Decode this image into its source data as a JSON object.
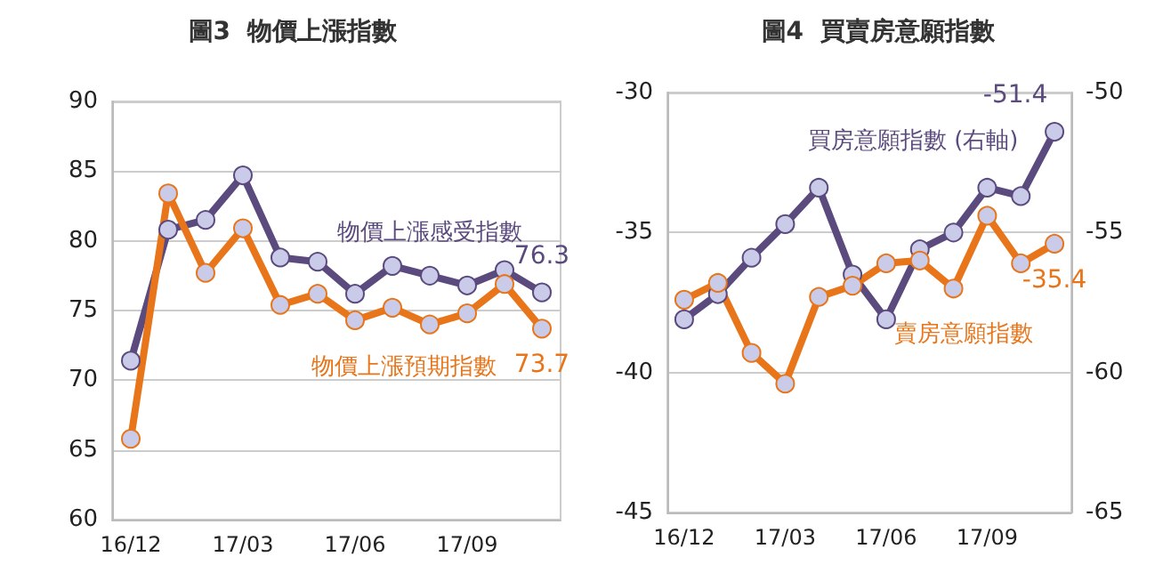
{
  "chart_data": [
    {
      "type": "line",
      "title": "圖3  物價上漲指數",
      "categories": [
        "16/12",
        null,
        null,
        "17/03",
        null,
        null,
        "17/06",
        null,
        null,
        "17/09",
        null,
        null
      ],
      "ylim": [
        60,
        90
      ],
      "yticks": [
        60,
        65,
        70,
        75,
        80,
        85,
        90
      ],
      "grid": "y",
      "marker": "circle",
      "legend": false,
      "series": [
        {
          "name": "物價上漲感受指數",
          "color": "#5b4a7e",
          "values": [
            71.4,
            80.8,
            81.5,
            84.7,
            78.8,
            78.5,
            76.2,
            78.2,
            77.5,
            76.8,
            77.9,
            76.3
          ],
          "value_labels": [
            null,
            null,
            null,
            null,
            null,
            null,
            null,
            null,
            null,
            null,
            null,
            "76.3"
          ]
        },
        {
          "name": "物價上漲預期指數",
          "color": "#e8751a",
          "values": [
            65.8,
            83.4,
            77.7,
            80.9,
            75.4,
            76.2,
            74.3,
            75.2,
            74.0,
            74.8,
            76.9,
            73.7
          ],
          "value_labels": [
            null,
            null,
            null,
            null,
            null,
            null,
            null,
            null,
            null,
            null,
            null,
            "73.7"
          ]
        }
      ]
    },
    {
      "type": "line",
      "title": "圖4  買賣房意願指數",
      "categories": [
        "16/12",
        null,
        null,
        "17/03",
        null,
        null,
        "17/06",
        null,
        null,
        "17/09",
        null,
        null
      ],
      "ylim": [
        -45,
        -30
      ],
      "yticks": [
        -45,
        -40,
        -35,
        -30
      ],
      "y2lim": [
        -65,
        -50
      ],
      "y2ticks": [
        -65,
        -60,
        -55,
        -50
      ],
      "grid": "y",
      "marker": "circle",
      "legend": false,
      "series": [
        {
          "name": "買房意願指數 (右軸)",
          "color": "#5b4a7e",
          "axis": "y2",
          "values": [
            -58.1,
            -57.2,
            -55.9,
            -54.7,
            -53.4,
            -56.5,
            -58.1,
            -55.6,
            -55.0,
            -53.4,
            -53.7,
            -51.4
          ],
          "value_labels": [
            null,
            null,
            null,
            null,
            null,
            null,
            null,
            null,
            null,
            null,
            null,
            "-51.4"
          ]
        },
        {
          "name": "賣房意願指數",
          "color": "#e8751a",
          "values": [
            -37.4,
            -36.8,
            -39.3,
            -40.4,
            -37.3,
            -36.9,
            -36.1,
            -36.0,
            -37.0,
            -34.4,
            -36.1,
            -35.4
          ],
          "value_labels": [
            null,
            null,
            null,
            null,
            null,
            null,
            null,
            null,
            null,
            null,
            null,
            "-35.4"
          ]
        }
      ]
    }
  ]
}
